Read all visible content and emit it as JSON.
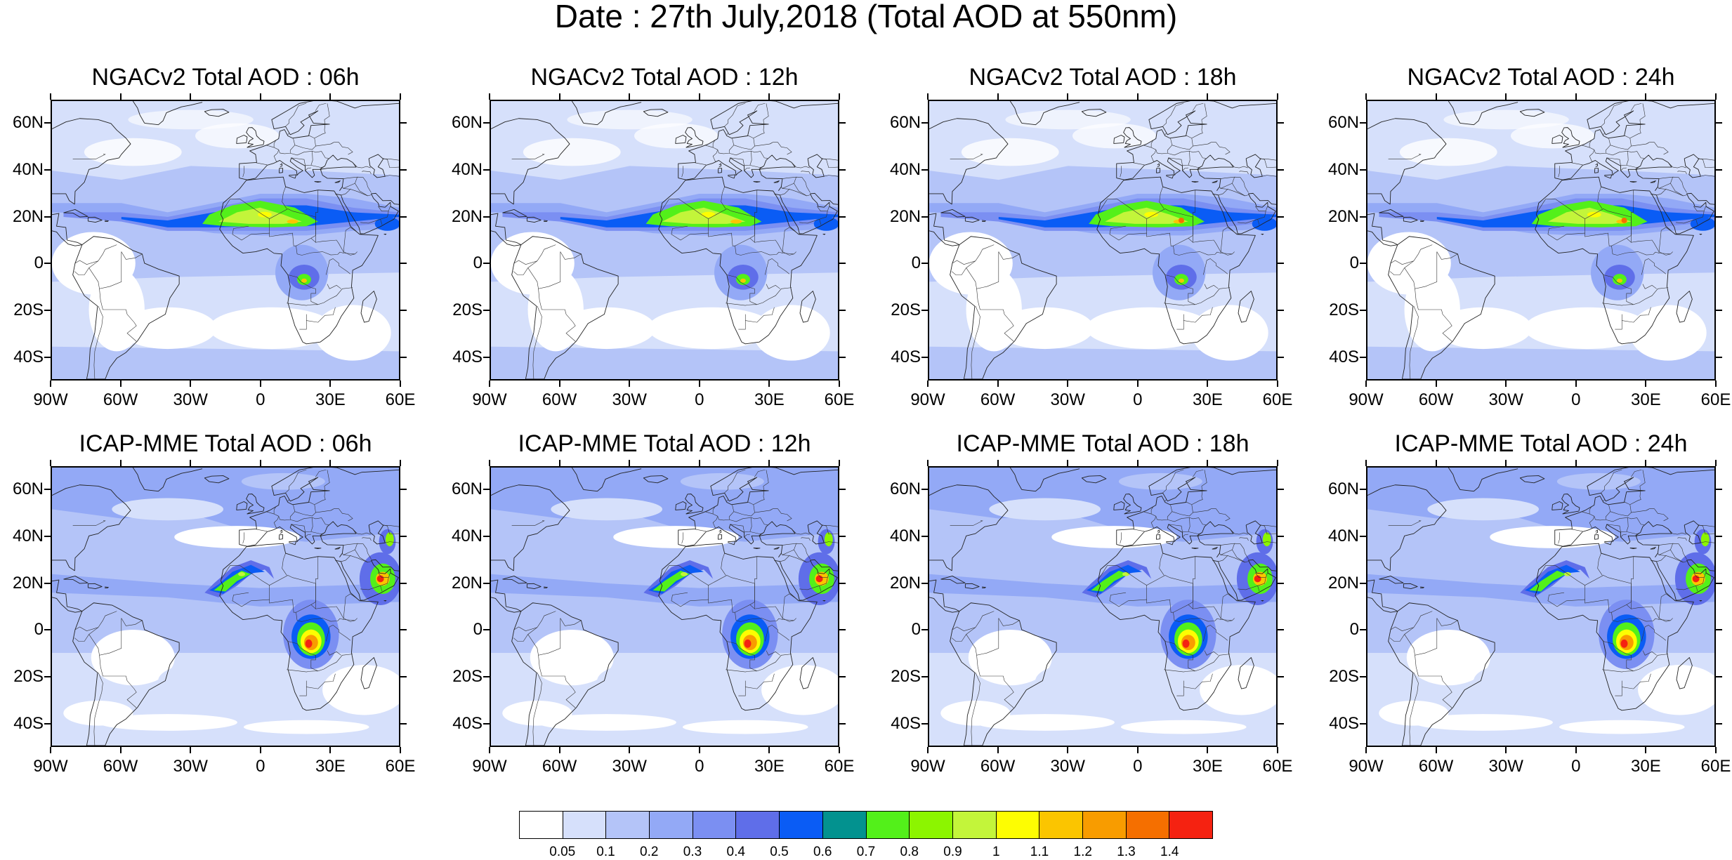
{
  "title": "Date : 27th July,2018 (Total AOD at 550nm)",
  "panels": [
    {
      "title": "NGACv2 Total AOD : 06h",
      "model": "NGACv2",
      "hour": "06h"
    },
    {
      "title": "NGACv2 Total AOD : 12h",
      "model": "NGACv2",
      "hour": "12h"
    },
    {
      "title": "NGACv2 Total AOD : 18h",
      "model": "NGACv2",
      "hour": "18h"
    },
    {
      "title": "NGACv2 Total AOD : 24h",
      "model": "NGACv2",
      "hour": "24h"
    },
    {
      "title": "ICAP-MME Total AOD : 06h",
      "model": "ICAP-MME",
      "hour": "06h"
    },
    {
      "title": "ICAP-MME Total AOD : 12h",
      "model": "ICAP-MME",
      "hour": "12h"
    },
    {
      "title": "ICAP-MME Total AOD : 18h",
      "model": "ICAP-MME",
      "hour": "18h"
    },
    {
      "title": "ICAP-MME Total AOD : 24h",
      "model": "ICAP-MME",
      "hour": "24h"
    }
  ],
  "map_extent": {
    "lon": [
      -90,
      60
    ],
    "lat": [
      -50,
      70
    ]
  },
  "lat_ticks": [
    {
      "value": 60,
      "label": "60N"
    },
    {
      "value": 40,
      "label": "40N"
    },
    {
      "value": 20,
      "label": "20N"
    },
    {
      "value": 0,
      "label": "0"
    },
    {
      "value": -20,
      "label": "20S"
    },
    {
      "value": -40,
      "label": "40S"
    }
  ],
  "lon_ticks": [
    {
      "value": -90,
      "label": "90W"
    },
    {
      "value": -60,
      "label": "60W"
    },
    {
      "value": -30,
      "label": "30W"
    },
    {
      "value": 0,
      "label": "0"
    },
    {
      "value": 30,
      "label": "30E"
    },
    {
      "value": 60,
      "label": "60E"
    }
  ],
  "colorbar": {
    "colors": [
      "#ffffff",
      "#d6e0fb",
      "#b4c4f8",
      "#93a9f6",
      "#7b8ff2",
      "#5f6ee9",
      "#0a5cf5",
      "#03928f",
      "#53f01a",
      "#8cf500",
      "#c3f53a",
      "#fdfd02",
      "#fbc500",
      "#f89c00",
      "#f56f00",
      "#f52211"
    ],
    "labels": [
      "0.05",
      "0.1",
      "0.2",
      "0.3",
      "0.4",
      "0.5",
      "0.6",
      "0.7",
      "0.8",
      "0.9",
      "1",
      "1.1",
      "1.2",
      "1.3",
      "1.4"
    ]
  }
}
